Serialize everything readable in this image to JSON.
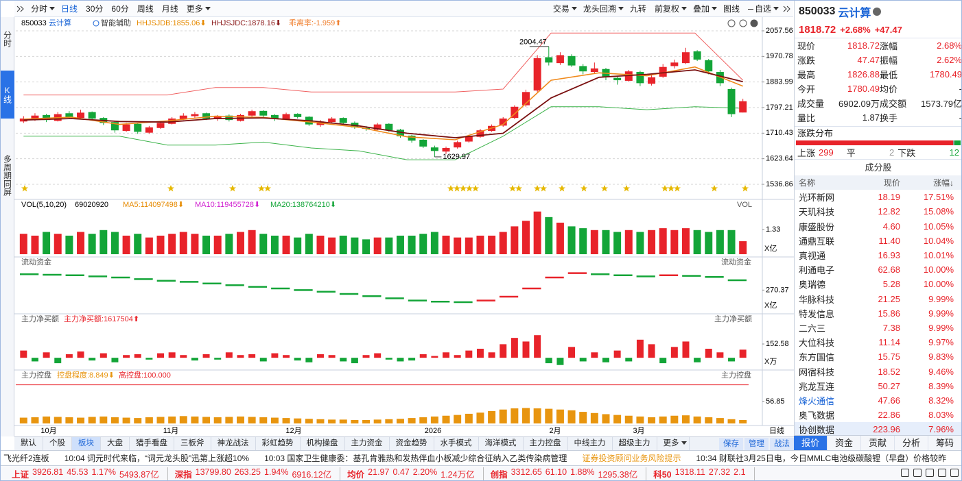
{
  "toolbar": {
    "left": [
      {
        "label": "分时",
        "menu": true
      },
      {
        "label": "日线",
        "menu": false
      },
      {
        "label": "30分",
        "menu": false
      },
      {
        "label": "60分",
        "menu": false
      },
      {
        "label": "周线",
        "menu": false
      },
      {
        "label": "月线",
        "menu": false
      },
      {
        "label": "更多",
        "menu": true
      }
    ],
    "selected": 1,
    "right": [
      {
        "label": "交易",
        "menu": true
      },
      {
        "label": "龙头回溯",
        "menu": true
      },
      {
        "label": "九转",
        "menu": false
      },
      {
        "label": "前复权",
        "menu": true
      },
      {
        "label": "叠加",
        "menu": true
      },
      {
        "label": "图线",
        "menu": false
      },
      {
        "label": "自选",
        "menu": true
      }
    ]
  },
  "side_tabs": [
    "分时",
    "K线",
    "多周期同屏"
  ],
  "kline": {
    "code": "850033",
    "name": "云计算",
    "assist": "智能辅助",
    "indicators": [
      "HHJSJDB:1855.06⬇",
      "HHJSJDC:1878.16⬇",
      "乖离率:-1.959⬆"
    ],
    "ylim": [
      1536.86,
      2057.56
    ],
    "yticks": [
      2057.56,
      1970.78,
      1883.99,
      1797.21,
      1710.43,
      1623.64,
      1536.86
    ],
    "up_color": "#e8232a",
    "down_color": "#13a538",
    "candles": [
      [
        1750,
        1760,
        1768,
        1745
      ],
      [
        1758,
        1770,
        1778,
        1752
      ],
      [
        1772,
        1755,
        1776,
        1748
      ],
      [
        1752,
        1775,
        1782,
        1750
      ],
      [
        1778,
        1765,
        1785,
        1760
      ],
      [
        1762,
        1780,
        1790,
        1758
      ],
      [
        1782,
        1760,
        1784,
        1755
      ],
      [
        1762,
        1745,
        1765,
        1738
      ],
      [
        1748,
        1720,
        1750,
        1712
      ],
      [
        1718,
        1740,
        1745,
        1715
      ],
      [
        1742,
        1715,
        1744,
        1708
      ],
      [
        1712,
        1730,
        1735,
        1708
      ],
      [
        1728,
        1745,
        1750,
        1725
      ],
      [
        1742,
        1760,
        1765,
        1740
      ],
      [
        1758,
        1770,
        1778,
        1755
      ],
      [
        1768,
        1775,
        1782,
        1762
      ],
      [
        1778,
        1760,
        1780,
        1755
      ],
      [
        1758,
        1768,
        1772,
        1752
      ],
      [
        1770,
        1755,
        1774,
        1750
      ],
      [
        1752,
        1772,
        1776,
        1750
      ],
      [
        1770,
        1785,
        1790,
        1766
      ],
      [
        1786,
        1770,
        1788,
        1765
      ],
      [
        1772,
        1760,
        1775,
        1752
      ],
      [
        1758,
        1775,
        1780,
        1755
      ],
      [
        1776,
        1765,
        1778,
        1760
      ],
      [
        1766,
        1740,
        1768,
        1735
      ],
      [
        1738,
        1750,
        1755,
        1732
      ],
      [
        1748,
        1760,
        1765,
        1745
      ],
      [
        1762,
        1745,
        1764,
        1740
      ],
      [
        1746,
        1730,
        1750,
        1725
      ],
      [
        1728,
        1725,
        1735,
        1718
      ],
      [
        1722,
        1740,
        1745,
        1720
      ],
      [
        1742,
        1720,
        1744,
        1715
      ],
      [
        1722,
        1700,
        1725,
        1695
      ],
      [
        1702,
        1685,
        1705,
        1678
      ],
      [
        1688,
        1665,
        1690,
        1660
      ],
      [
        1662,
        1650,
        1668,
        1629.97
      ],
      [
        1648,
        1660,
        1665,
        1640
      ],
      [
        1662,
        1680,
        1685,
        1658
      ],
      [
        1682,
        1700,
        1705,
        1678
      ],
      [
        1698,
        1720,
        1725,
        1695
      ],
      [
        1718,
        1735,
        1740,
        1715
      ],
      [
        1736,
        1760,
        1765,
        1732
      ],
      [
        1762,
        1800,
        1805,
        1758
      ],
      [
        1805,
        1850,
        1858,
        1800
      ],
      [
        1855,
        1965,
        1975,
        1850
      ],
      [
        1968,
        1950,
        2004.47,
        1940
      ],
      [
        1948,
        1975,
        1985,
        1942
      ],
      [
        1972,
        1940,
        1978,
        1935
      ],
      [
        1938,
        1920,
        1945,
        1910
      ],
      [
        1918,
        1930,
        1950,
        1912
      ],
      [
        1928,
        1900,
        1932,
        1890
      ],
      [
        1898,
        1890,
        1905,
        1875
      ],
      [
        1888,
        1920,
        1925,
        1885
      ],
      [
        1918,
        1880,
        1922,
        1870
      ],
      [
        1878,
        1900,
        1908,
        1872
      ],
      [
        1902,
        1935,
        1945,
        1898
      ],
      [
        1938,
        1950,
        1960,
        1930
      ],
      [
        1948,
        1985,
        2000,
        1945
      ],
      [
        1988,
        1960,
        1992,
        1955
      ],
      [
        1958,
        1920,
        1962,
        1910
      ],
      [
        1918,
        1880,
        1925,
        1870
      ],
      [
        1860,
        1775,
        1865,
        1765
      ],
      [
        1780.49,
        1818.72,
        1826.88,
        1780.49
      ]
    ],
    "ma_fast": [
      1758,
      1765,
      1740,
      1752,
      1768,
      1764,
      1748,
      1730,
      1698,
      1688,
      1740,
      1890,
      1915,
      1905,
      1935,
      1870
    ],
    "ma_slow": [
      1755,
      1760,
      1750,
      1748,
      1760,
      1762,
      1752,
      1735,
      1710,
      1695,
      1710,
      1830,
      1900,
      1910,
      1925,
      1885
    ],
    "band_upper": [
      1840,
      1840,
      1840,
      1840,
      1865,
      1865,
      1850,
      1850,
      1850,
      1850,
      1860,
      2050,
      2050,
      2050,
      2050,
      1890
    ],
    "band_lower": [
      1700,
      1700,
      1700,
      1670,
      1670,
      1680,
      1660,
      1650,
      1620,
      1620,
      1700,
      1800,
      1800,
      1790,
      1800,
      1795
    ],
    "months": [
      "10月",
      "11月",
      "12月",
      "2026",
      "2月",
      "3月"
    ],
    "period": "日线"
  },
  "volume": {
    "title": "VOL(5,10,20)",
    "indicators": [
      "69020920",
      "MA5:114097498⬇",
      "MA10:119455728⬇",
      "MA20:138764210⬇"
    ],
    "label": "VOL",
    "unit": "X亿",
    "ylim": [
      0,
      2.4
    ],
    "yticks": [
      1.33
    ],
    "values": [
      1.1,
      1.0,
      1.2,
      1.1,
      1.0,
      1.2,
      1.1,
      1.3,
      1.2,
      1.0,
      1.1,
      0.9,
      1.0,
      1.1,
      1.2,
      1.1,
      1.0,
      1.0,
      1.1,
      1.2,
      1.3,
      1.1,
      1.0,
      1.0,
      0.9,
      1.1,
      1.0,
      0.9,
      1.0,
      0.9,
      0.8,
      0.9,
      0.9,
      1.0,
      1.0,
      1.1,
      1.2,
      1.0,
      0.9,
      0.9,
      1.0,
      1.0,
      1.2,
      1.5,
      1.8,
      2.3,
      2.0,
      1.7,
      1.5,
      1.4,
      1.3,
      1.3,
      1.2,
      1.3,
      1.2,
      1.3,
      1.4,
      1.3,
      1.4,
      1.3,
      1.2,
      1.3,
      1.3,
      0.7
    ]
  },
  "fund_flow": {
    "title": "流动资金",
    "unit": "X亿",
    "ylim": [
      -100,
      650
    ],
    "yticks": [
      270.37
    ],
    "values": [
      560,
      550,
      540,
      520,
      500,
      470,
      440,
      420,
      390,
      360,
      330,
      300,
      270,
      240,
      200,
      160,
      120,
      80,
      60,
      50,
      80,
      150,
      300,
      500,
      580,
      560,
      540,
      520,
      540,
      530,
      510,
      450
    ]
  },
  "net_buy": {
    "title": "主力净买额",
    "indicators": [
      "主力净买额:1617504⬆"
    ],
    "unit": "X万",
    "ylim": [
      -120,
      350
    ],
    "yticks": [
      152.58
    ],
    "values": [
      80,
      -40,
      60,
      -60,
      40,
      70,
      -30,
      50,
      -50,
      30,
      40,
      -20,
      50,
      60,
      30,
      -30,
      40,
      -20,
      60,
      30,
      40,
      -40,
      50,
      30,
      -30,
      -50,
      40,
      30,
      -40,
      -60,
      30,
      50,
      -20,
      -40,
      -30,
      40,
      20,
      60,
      30,
      80,
      100,
      60,
      150,
      220,
      180,
      250,
      -60,
      -80,
      120,
      -40,
      60,
      -50,
      80,
      -40,
      200,
      150,
      -60,
      120,
      180,
      -50,
      100,
      60,
      -40,
      90
    ]
  },
  "control": {
    "title": "主力控盘",
    "indicators": [
      "控盘程度:8.849⬇",
      "高控盘:100.000"
    ],
    "ylim": [
      0,
      110
    ],
    "yticks": [
      56.85
    ],
    "reference": 100,
    "color": "#e8950f",
    "values": [
      15,
      16,
      18,
      17,
      16,
      15,
      17,
      18,
      16,
      15,
      14,
      16,
      17,
      18,
      19,
      18,
      17,
      16,
      17,
      18,
      17,
      16,
      15,
      14,
      13,
      12,
      11,
      10,
      10,
      9,
      9,
      10,
      11,
      12,
      14,
      16,
      18,
      20,
      22,
      25,
      28,
      32,
      36,
      39,
      40,
      39,
      38,
      36,
      34,
      30,
      27,
      24,
      22,
      20,
      18,
      16,
      18,
      20,
      21,
      18,
      16,
      14,
      11,
      9
    ]
  },
  "bottom_tabs": [
    "默认",
    "个股",
    "板块",
    "大盘",
    "猎手看盘",
    "三板斧",
    "神龙战法",
    "彩虹趋势",
    "机构操盘",
    "主力资金",
    "资金趋势",
    "水手模式",
    "海洋模式",
    "主力控盘",
    "中线主力",
    "超级主力",
    "更多"
  ],
  "bottom_selected": 2,
  "bottom_actions": [
    "保存",
    "管理",
    "战法"
  ],
  "quote": {
    "code": "850033",
    "name": "云计算",
    "price": "1818.72",
    "pct": "+2.68%",
    "change": "+47.47",
    "rows": [
      [
        "现价",
        "1818.72",
        "涨幅",
        "2.68%"
      ],
      [
        "涨跌",
        "47.47",
        "振幅",
        "2.62%"
      ],
      [
        "最高",
        "1826.88",
        "最低",
        "1780.49"
      ],
      [
        "今开",
        "1780.49",
        "均价",
        "-"
      ],
      [
        "成交量",
        "6902.09万",
        "成交额",
        "1573.79亿"
      ],
      [
        "量比",
        "1.87",
        "换手",
        "-"
      ]
    ],
    "distribution": {
      "title": "涨跌分布",
      "labels": [
        "上涨",
        "平",
        "下跌"
      ],
      "values": [
        299,
        2,
        12
      ]
    },
    "components": {
      "title": "成分股",
      "columns": [
        "名称",
        "现价",
        "涨幅↓"
      ],
      "rows": [
        [
          "光环新网",
          "18.19",
          "17.51%"
        ],
        [
          "天玑科技",
          "12.82",
          "15.08%"
        ],
        [
          "康盛股份",
          "4.60",
          "10.05%"
        ],
        [
          "通鼎互联",
          "11.40",
          "10.04%"
        ],
        [
          "真视通",
          "16.93",
          "10.01%"
        ],
        [
          "利通电子",
          "62.68",
          "10.00%"
        ],
        [
          "奥瑞德",
          "5.28",
          "10.00%"
        ],
        [
          "华脉科技",
          "21.25",
          "9.99%"
        ],
        [
          "特发信息",
          "15.86",
          "9.99%"
        ],
        [
          "二六三",
          "7.38",
          "9.99%"
        ],
        [
          "大位科技",
          "11.14",
          "9.97%"
        ],
        [
          "东方国信",
          "15.75",
          "9.83%"
        ],
        [
          "网宿科技",
          "18.52",
          "9.46%"
        ],
        [
          "兆龙互连",
          "50.27",
          "8.39%"
        ],
        [
          "烽火通信",
          "47.66",
          "8.32%"
        ],
        [
          "奥飞数据",
          "22.86",
          "8.03%"
        ],
        [
          "协创数据",
          "223.96",
          "7.96%"
        ]
      ]
    },
    "tabs": [
      "报价",
      "资金",
      "贡献",
      "分析",
      "筹码"
    ]
  },
  "news": [
    "飞光纤2连板",
    "10:04 词元时代来临，“词元龙头股”迅第上涨超10%",
    "10:03 国家卫生健康委：基孔肯雅热和发热伴血小板减少综合征纳入乙类传染病管理",
    "证券投资顾问业务风险提示",
    "10:34 财联社3月25日电，今日MMLC电池级碳酸锂（早盘）价格较昨"
  ],
  "indices": [
    {
      "name": "上证",
      "price": "3926.81",
      "change": "45.53",
      "pct": "1.17%",
      "amount": "5493.87亿"
    },
    {
      "name": "深指",
      "price": "13799.80",
      "change": "263.25",
      "pct": "1.94%",
      "amount": "6916.12亿"
    },
    {
      "name": "均价",
      "price": "21.97",
      "change": "0.47",
      "pct": "2.20%",
      "amount": "1.24万亿"
    },
    {
      "name": "创指",
      "price": "3312.65",
      "change": "61.10",
      "pct": "1.88%",
      "amount": "1295.38亿"
    },
    {
      "name": "科50",
      "price": "1318.11",
      "change": "27.32",
      "pct": "2.1"
    }
  ]
}
